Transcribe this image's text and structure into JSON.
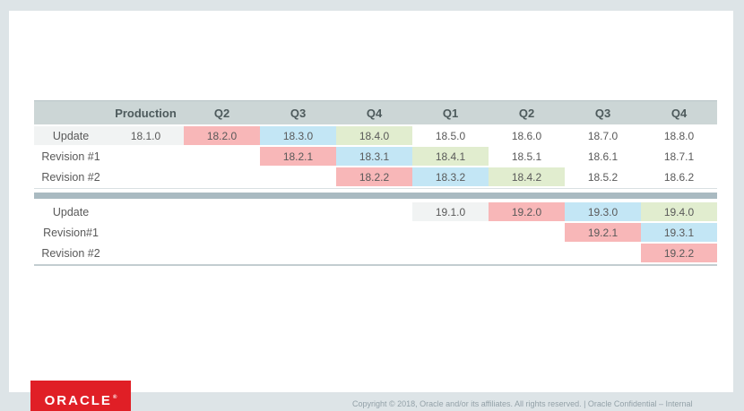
{
  "slide": {
    "table": {
      "header": [
        "",
        "Production",
        "Q2",
        "Q3",
        "Q4",
        "Q1",
        "Q2",
        "Q3",
        "Q4"
      ],
      "blocks": [
        {
          "rows": [
            {
              "label": "Update",
              "label_bg": "gray",
              "cells": [
                {
                  "value": "18.1.0",
                  "color": "gray"
                },
                {
                  "value": "18.2.0",
                  "color": "pink"
                },
                {
                  "value": "18.3.0",
                  "color": "blue"
                },
                {
                  "value": "18.4.0",
                  "color": "green"
                },
                {
                  "value": "18.5.0",
                  "color": "white"
                },
                {
                  "value": "18.6.0",
                  "color": "white"
                },
                {
                  "value": "18.7.0",
                  "color": "white"
                },
                {
                  "value": "18.8.0",
                  "color": "white"
                }
              ]
            },
            {
              "label": "Revision #1",
              "label_bg": "white",
              "cells": [
                null,
                null,
                {
                  "value": "18.2.1",
                  "color": "pink"
                },
                {
                  "value": "18.3.1",
                  "color": "blue"
                },
                {
                  "value": "18.4.1",
                  "color": "green"
                },
                {
                  "value": "18.5.1",
                  "color": "white"
                },
                {
                  "value": "18.6.1",
                  "color": "white"
                },
                {
                  "value": "18.7.1",
                  "color": "white"
                }
              ]
            },
            {
              "label": "Revision #2",
              "label_bg": "white",
              "cells": [
                null,
                null,
                null,
                {
                  "value": "18.2.2",
                  "color": "pink"
                },
                {
                  "value": "18.3.2",
                  "color": "blue"
                },
                {
                  "value": "18.4.2",
                  "color": "green"
                },
                {
                  "value": "18.5.2",
                  "color": "white"
                },
                {
                  "value": "18.6.2",
                  "color": "white"
                }
              ]
            }
          ]
        },
        {
          "rows": [
            {
              "label": "Update",
              "label_bg": "white",
              "cells": [
                null,
                null,
                null,
                null,
                {
                  "value": "19.1.0",
                  "color": "gray"
                },
                {
                  "value": "19.2.0",
                  "color": "pink"
                },
                {
                  "value": "19.3.0",
                  "color": "blue"
                },
                {
                  "value": "19.4.0",
                  "color": "green"
                }
              ]
            },
            {
              "label": "Revision#1",
              "label_bg": "white",
              "cells": [
                null,
                null,
                null,
                null,
                null,
                null,
                {
                  "value": "19.2.1",
                  "color": "pink"
                },
                {
                  "value": "19.3.1",
                  "color": "blue"
                }
              ]
            },
            {
              "label": "Revision #2",
              "label_bg": "white",
              "cells": [
                null,
                null,
                null,
                null,
                null,
                null,
                null,
                {
                  "value": "19.2.2",
                  "color": "pink"
                }
              ]
            }
          ]
        }
      ]
    },
    "logo": {
      "text": "ORACLE",
      "registered_mark": "®"
    },
    "footer": {
      "text": "Copyright © 2018, Oracle and/or its affiliates. All rights reserved.  |  Oracle Confidential – Internal"
    }
  },
  "colors": {
    "frame_bg": "#dde4e7",
    "slide_bg": "#ffffff",
    "header_bg": "#ccd6d6",
    "divider": "#a9bac1",
    "cell_pink": "#f8b7b8",
    "cell_blue": "#c3e6f5",
    "cell_green": "#e1edcf",
    "cell_gray": "#f1f3f3",
    "text": "#595959",
    "oracle_red": "#e01f26"
  }
}
